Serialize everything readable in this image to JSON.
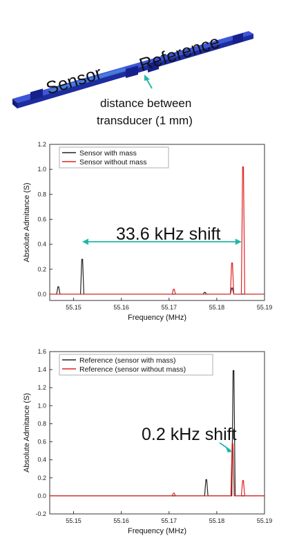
{
  "diagram": {
    "label_sensor": "Sensor",
    "label_reference": "Reference",
    "caption_line1": "distance between",
    "caption_line2": "transducer (1 mm)",
    "colors": {
      "beam": "#2230b0",
      "pad": "#16208a",
      "arrow": "#1fb8a8"
    }
  },
  "chart_data": [
    {
      "type": "line",
      "xlabel": "Frequency (MHz)",
      "ylabel": "Absolute Admitance (S)",
      "xlim": [
        55.145,
        55.19
      ],
      "ylim": [
        -0.05,
        1.2
      ],
      "x_ticks": [
        "55.15",
        "55.16",
        "55.17",
        "55.18",
        "55.19"
      ],
      "y_ticks": [
        "0.0",
        "0.2",
        "0.4",
        "0.6",
        "0.8",
        "1.0",
        "1.2"
      ],
      "legend_position": "top-left",
      "series": [
        {
          "name": "Sensor with mass",
          "color": "#222222",
          "peaks": [
            {
              "x": 55.1468,
              "y": 0.06
            },
            {
              "x": 55.1518,
              "y": 0.28
            },
            {
              "x": 55.1775,
              "y": 0.015
            },
            {
              "x": 55.1832,
              "y": 0.05
            }
          ]
        },
        {
          "name": "Sensor without mass",
          "color": "#e02020",
          "peaks": [
            {
              "x": 55.171,
              "y": 0.04
            },
            {
              "x": 55.1832,
              "y": 0.25
            },
            {
              "x": 55.1855,
              "y": 1.02
            }
          ]
        }
      ],
      "annotation": {
        "text": "33.6 kHz shift",
        "x_start": 55.1518,
        "x_end": 55.1852,
        "y": 0.42,
        "color": "#1fb8a8"
      }
    },
    {
      "type": "line",
      "xlabel": "Frequency (MHz)",
      "ylabel": "Absolute Admitance (S)",
      "xlim": [
        55.145,
        55.19
      ],
      "ylim": [
        -0.2,
        1.6
      ],
      "x_ticks": [
        "55.15",
        "55.16",
        "55.17",
        "55.18",
        "55.19"
      ],
      "y_ticks": [
        "-0.2",
        "0.0",
        "0.2",
        "0.4",
        "0.6",
        "0.8",
        "1.0",
        "1.2",
        "1.4",
        "1.6"
      ],
      "legend_position": "top-left",
      "series": [
        {
          "name": "Reference (sensor with mass)",
          "color": "#222222",
          "peaks": [
            {
              "x": 55.1778,
              "y": 0.18
            },
            {
              "x": 55.1835,
              "y": 1.39
            }
          ]
        },
        {
          "name": "Reference (sensor without mass)",
          "color": "#e02020",
          "peaks": [
            {
              "x": 55.171,
              "y": 0.03
            },
            {
              "x": 55.1833,
              "y": 0.58
            },
            {
              "x": 55.1855,
              "y": 0.17
            }
          ]
        }
      ],
      "annotation": {
        "text": "0.2 kHz shift",
        "color": "#1fb8a8"
      }
    }
  ]
}
